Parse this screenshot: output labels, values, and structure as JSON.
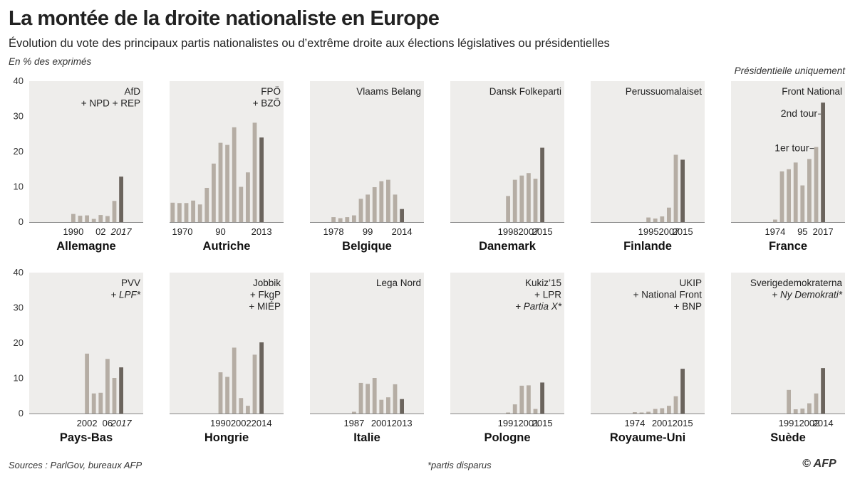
{
  "title": "La montée de la droite nationaliste en Europe",
  "subtitle": "Évolution du vote des principaux partis nationalistes ou d’extrême droite aux élections législatives ou présidentielles",
  "unit_note": "En % des exprimés",
  "presidential_note": "Présidentielle uniquement",
  "sources": "Sources : ParlGov, bureaux AFP",
  "footnote": "*partis disparus",
  "logo_text": "© AFP",
  "colors": {
    "past_bar": "#b5ada4",
    "latest_bar": "#6b645d",
    "panel_bg": "#eeedeb",
    "axis": "#888888"
  },
  "axis_ticks": [
    "0",
    "10",
    "20",
    "30",
    "40"
  ],
  "annotations": {
    "second_round": "2nd tour",
    "first_round": "1er tour"
  },
  "chart_data": [
    {
      "type": "bar",
      "country": "Allemagne",
      "party_lines": [
        "AfD",
        "+ NPD + REP"
      ],
      "party_italic": [
        false,
        false
      ],
      "values": [
        2.3,
        1.8,
        1.9,
        0.9,
        2.0,
        1.7,
        6.0,
        12.9
      ],
      "xticks": [
        "1990",
        "02",
        "2017"
      ],
      "xticks_italic": [
        false,
        false,
        true
      ],
      "ylim": [
        0,
        40
      ]
    },
    {
      "type": "bar",
      "country": "Autriche",
      "party_lines": [
        "FPÖ",
        "+ BZÖ"
      ],
      "party_italic": [
        false,
        false
      ],
      "values": [
        5.5,
        5.4,
        5.4,
        6.1,
        5.0,
        9.7,
        16.6,
        22.5,
        21.9,
        26.9,
        10.0,
        14.1,
        28.2,
        24.0
      ],
      "xticks": [
        "1970",
        "90",
        "2013"
      ],
      "xticks_italic": [
        false,
        false,
        false
      ],
      "ylim": [
        0,
        40
      ]
    },
    {
      "type": "bar",
      "country": "Belgique",
      "party_lines": [
        "Vlaams Belang"
      ],
      "party_italic": [
        false
      ],
      "values": [
        1.4,
        1.1,
        1.4,
        1.9,
        6.6,
        7.8,
        9.9,
        11.6,
        12.0,
        7.8,
        3.7
      ],
      "xticks": [
        "1978",
        "99",
        "2014"
      ],
      "xticks_italic": [
        false,
        false,
        false
      ],
      "ylim": [
        0,
        40
      ]
    },
    {
      "type": "bar",
      "country": "Danemark",
      "party_lines": [
        "Dansk Folkeparti"
      ],
      "party_italic": [
        false
      ],
      "values": [
        7.4,
        12.0,
        13.2,
        13.9,
        12.3,
        21.1
      ],
      "xticks": [
        "1998",
        "2007",
        "2015"
      ],
      "xticks_italic": [
        false,
        false,
        false
      ],
      "ylim": [
        0,
        40
      ]
    },
    {
      "type": "bar",
      "country": "Finlande",
      "party_lines": [
        "Perussuomalaiset"
      ],
      "party_italic": [
        false
      ],
      "values": [
        1.3,
        1.0,
        1.6,
        4.1,
        19.1,
        17.7
      ],
      "xticks": [
        "1995",
        "2007",
        "2015"
      ],
      "xticks_italic": [
        false,
        false,
        false
      ],
      "ylim": [
        0,
        40
      ]
    },
    {
      "type": "bar",
      "country": "France",
      "party_lines": [
        "Front National"
      ],
      "party_italic": [
        false
      ],
      "values": [
        0.7,
        14.4,
        15.0,
        16.9,
        10.4,
        17.9,
        21.3,
        33.9
      ],
      "xticks": [
        "1974",
        "95",
        "2017"
      ],
      "xticks_italic": [
        false,
        false,
        false
      ],
      "ylim": [
        0,
        40
      ]
    },
    {
      "type": "bar",
      "country": "Pays-Bas",
      "party_lines": [
        "PVV",
        "+ LPF*"
      ],
      "party_italic": [
        false,
        true
      ],
      "values": [
        17.0,
        5.7,
        5.9,
        15.5,
        10.1,
        13.1
      ],
      "xticks": [
        "2002",
        "06",
        "2017"
      ],
      "xticks_italic": [
        false,
        false,
        true
      ],
      "ylim": [
        0,
        40
      ]
    },
    {
      "type": "bar",
      "country": "Hongrie",
      "party_lines": [
        "Jobbik",
        "+ FkgP",
        "+ MIÉP"
      ],
      "party_italic": [
        false,
        false,
        false
      ],
      "values": [
        11.7,
        10.4,
        18.7,
        4.4,
        2.2,
        16.7,
        20.2
      ],
      "xticks": [
        "1990",
        "2002",
        "2014"
      ],
      "xticks_italic": [
        false,
        false,
        false
      ],
      "ylim": [
        0,
        40
      ]
    },
    {
      "type": "bar",
      "country": "Italie",
      "party_lines": [
        "Lega Nord"
      ],
      "party_italic": [
        false
      ],
      "values": [
        0.5,
        8.7,
        8.4,
        10.1,
        3.9,
        4.6,
        8.3,
        4.1
      ],
      "xticks": [
        "1987",
        "2001",
        "2013"
      ],
      "xticks_italic": [
        false,
        false,
        false
      ],
      "ylim": [
        0,
        40
      ]
    },
    {
      "type": "bar",
      "country": "Pologne",
      "party_lines": [
        "Kukiz’15",
        "+ LPR",
        "+ Partia X*"
      ],
      "party_italic": [
        false,
        false,
        true
      ],
      "values": [
        0.3,
        2.6,
        7.9,
        8.0,
        1.3,
        8.8
      ],
      "xticks": [
        "1991",
        "2001",
        "2015"
      ],
      "xticks_italic": [
        false,
        false,
        false
      ],
      "ylim": [
        0,
        40
      ]
    },
    {
      "type": "bar",
      "country": "Royaume-Uni",
      "party_lines": [
        "UKIP",
        "+ National Front",
        "+ BNP"
      ],
      "party_italic": [
        false,
        false,
        false
      ],
      "values": [
        0.4,
        0.3,
        0.5,
        1.3,
        1.5,
        2.2,
        4.9,
        12.7
      ],
      "xticks": [
        "1974",
        "2001",
        "2015"
      ],
      "xticks_italic": [
        false,
        false,
        false
      ],
      "ylim": [
        0,
        40
      ]
    },
    {
      "type": "bar",
      "country": "Suède",
      "party_lines": [
        "Sverigedemokraterna",
        "+ Ny Demokrati*"
      ],
      "party_italic": [
        false,
        true
      ],
      "values": [
        6.7,
        1.2,
        1.4,
        2.9,
        5.7,
        12.9
      ],
      "xticks": [
        "1991",
        "2002",
        "2014"
      ],
      "xticks_italic": [
        false,
        false,
        false
      ],
      "ylim": [
        0,
        40
      ]
    }
  ]
}
